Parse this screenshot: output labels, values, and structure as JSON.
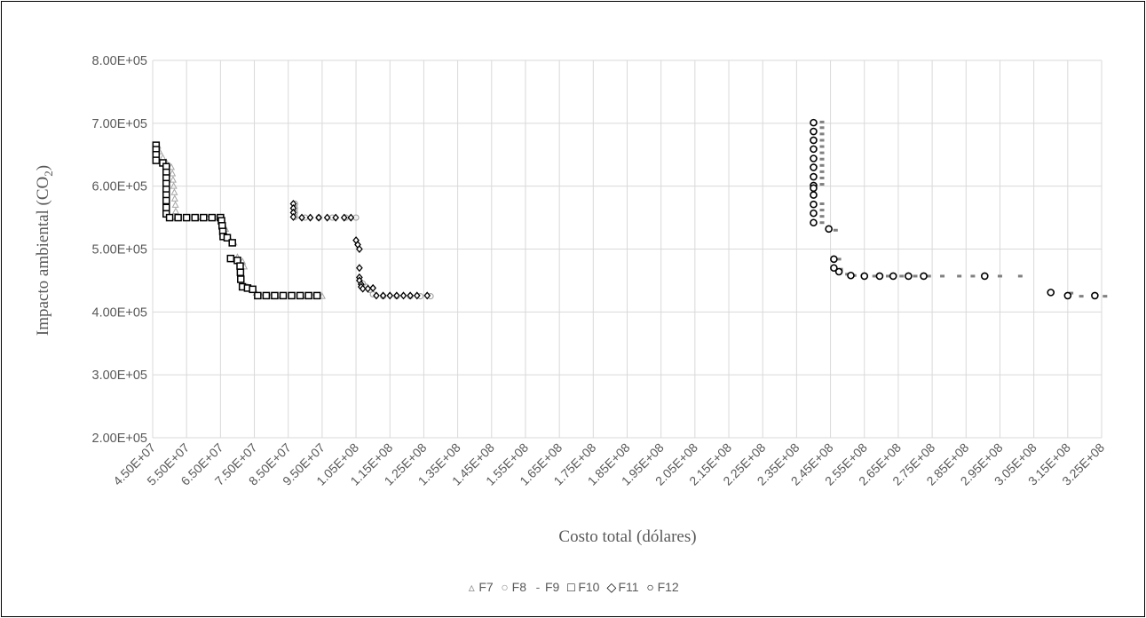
{
  "chart_data": {
    "type": "scatter",
    "title": "",
    "xlabel": "Costo total (dólares)",
    "ylabel_main": "Impacto ambiental (CO",
    "ylabel_sub": "2",
    "ylabel_tail": ")",
    "xlim": [
      45000000,
      325000000
    ],
    "ylim": [
      200000,
      800000
    ],
    "x_ticks": [
      "4.50E+07",
      "5.50E+07",
      "6.50E+07",
      "7.50E+07",
      "8.50E+07",
      "9.50E+07",
      "1.05E+08",
      "1.15E+08",
      "1.25E+08",
      "1.35E+08",
      "1.45E+08",
      "1.55E+08",
      "1.65E+08",
      "1.75E+08",
      "1.85E+08",
      "1.95E+08",
      "2.05E+08",
      "2.15E+08",
      "2.25E+08",
      "2.35E+08",
      "2.45E+08",
      "2.55E+08",
      "2.65E+08",
      "2.75E+08",
      "2.85E+08",
      "2.95E+08",
      "3.05E+08",
      "3.15E+08",
      "3.25E+08"
    ],
    "y_ticks": [
      "2.00E+05",
      "3.00E+05",
      "4.00E+05",
      "5.00E+05",
      "6.00E+05",
      "7.00E+05",
      "8.00E+05"
    ],
    "gridlines": true,
    "legend_position": "bottom",
    "series": [
      {
        "name": "F7",
        "marker": "triangle",
        "color": "#a6a6a6",
        "points": [
          [
            46500000,
            664000
          ],
          [
            47000000,
            655000
          ],
          [
            48000000,
            645000
          ],
          [
            49000000,
            638000
          ],
          [
            50500000,
            630000
          ],
          [
            50800000,
            620000
          ],
          [
            51000000,
            610000
          ],
          [
            51200000,
            600000
          ],
          [
            51400000,
            590000
          ],
          [
            51500000,
            580000
          ],
          [
            51700000,
            570000
          ],
          [
            51800000,
            560000
          ],
          [
            52000000,
            550000
          ],
          [
            55000000,
            550000
          ],
          [
            58000000,
            550000
          ],
          [
            61000000,
            550000
          ],
          [
            63000000,
            550000
          ],
          [
            64000000,
            550000
          ],
          [
            65500000,
            548000
          ],
          [
            66500000,
            532000
          ],
          [
            67500000,
            518000
          ],
          [
            69000000,
            510000
          ],
          [
            70000000,
            487000
          ],
          [
            71500000,
            480000
          ],
          [
            72000000,
            472000
          ],
          [
            73000000,
            440000
          ],
          [
            74000000,
            437000
          ],
          [
            75500000,
            430000
          ],
          [
            77000000,
            425000
          ],
          [
            80000000,
            425000
          ],
          [
            83000000,
            425000
          ],
          [
            86000000,
            425000
          ],
          [
            89000000,
            425000
          ],
          [
            92000000,
            425000
          ],
          [
            95000000,
            425000
          ]
        ]
      },
      {
        "name": "F8",
        "marker": "circle-small",
        "color": "#a6a6a6",
        "points": [
          [
            87000000,
            572000
          ],
          [
            87000000,
            565000
          ],
          [
            87000000,
            558000
          ],
          [
            87000000,
            551000
          ],
          [
            90000000,
            550000
          ],
          [
            94000000,
            550000
          ],
          [
            98000000,
            550000
          ],
          [
            102000000,
            550000
          ],
          [
            105000000,
            550000
          ],
          [
            107000000,
            445000
          ],
          [
            108000000,
            440000
          ],
          [
            109000000,
            435000
          ],
          [
            110000000,
            428000
          ],
          [
            113000000,
            425000
          ],
          [
            117000000,
            425000
          ],
          [
            121000000,
            425000
          ],
          [
            124000000,
            425000
          ],
          [
            127000000,
            425000
          ]
        ]
      },
      {
        "name": "F9",
        "marker": "dash",
        "color": "#808080",
        "points": [
          [
            242500000,
            702000
          ],
          [
            242500000,
            693000
          ],
          [
            242500000,
            683000
          ],
          [
            242500000,
            673000
          ],
          [
            242500000,
            663000
          ],
          [
            242500000,
            653000
          ],
          [
            242500000,
            643000
          ],
          [
            242500000,
            633000
          ],
          [
            242500000,
            623000
          ],
          [
            242500000,
            613000
          ],
          [
            242500000,
            603000
          ],
          [
            242500000,
            572000
          ],
          [
            242500000,
            562000
          ],
          [
            242500000,
            552000
          ],
          [
            242500000,
            542000
          ],
          [
            246500000,
            530000
          ],
          [
            247500000,
            484000
          ],
          [
            248000000,
            468000
          ],
          [
            250000000,
            460000
          ],
          [
            252000000,
            458000
          ],
          [
            255000000,
            457000
          ],
          [
            258000000,
            457000
          ],
          [
            262000000,
            457000
          ],
          [
            266000000,
            457000
          ],
          [
            270000000,
            457000
          ],
          [
            274000000,
            457000
          ],
          [
            278000000,
            457000
          ],
          [
            283000000,
            457000
          ],
          [
            287000000,
            457000
          ],
          [
            295000000,
            457000
          ],
          [
            301000000,
            457000
          ],
          [
            316000000,
            430000
          ],
          [
            319000000,
            425000
          ],
          [
            326000000,
            425000
          ]
        ]
      },
      {
        "name": "F10",
        "marker": "square",
        "color": "#000000",
        "points": [
          [
            46000000,
            665000
          ],
          [
            46000000,
            658000
          ],
          [
            46000000,
            650000
          ],
          [
            46000000,
            641000
          ],
          [
            48000000,
            637000
          ],
          [
            49000000,
            631000
          ],
          [
            49000000,
            622000
          ],
          [
            49000000,
            613000
          ],
          [
            49000000,
            604000
          ],
          [
            49000000,
            595000
          ],
          [
            49000000,
            586000
          ],
          [
            49000000,
            577000
          ],
          [
            49000000,
            566000
          ],
          [
            49000000,
            556000
          ],
          [
            50000000,
            550000
          ],
          [
            52500000,
            550000
          ],
          [
            55000000,
            550000
          ],
          [
            57500000,
            550000
          ],
          [
            60000000,
            550000
          ],
          [
            62500000,
            550000
          ],
          [
            65000000,
            550000
          ],
          [
            65300000,
            545000
          ],
          [
            65500000,
            537000
          ],
          [
            65700000,
            528000
          ],
          [
            65800000,
            520000
          ],
          [
            67000000,
            518000
          ],
          [
            68500000,
            510000
          ],
          [
            68000000,
            485000
          ],
          [
            70000000,
            482000
          ],
          [
            70800000,
            473000
          ],
          [
            70900000,
            463000
          ],
          [
            71000000,
            452000
          ],
          [
            71500000,
            440000
          ],
          [
            73000000,
            438000
          ],
          [
            74500000,
            436000
          ],
          [
            76000000,
            426000
          ],
          [
            78500000,
            426000
          ],
          [
            81000000,
            426000
          ],
          [
            83500000,
            426000
          ],
          [
            86000000,
            426000
          ],
          [
            88500000,
            426000
          ],
          [
            91000000,
            426000
          ],
          [
            93500000,
            426000
          ]
        ]
      },
      {
        "name": "F11",
        "marker": "diamond",
        "color": "#000000",
        "points": [
          [
            86500000,
            572000
          ],
          [
            86500000,
            565000
          ],
          [
            86500000,
            558000
          ],
          [
            86500000,
            551000
          ],
          [
            89000000,
            550000
          ],
          [
            91500000,
            550000
          ],
          [
            94000000,
            550000
          ],
          [
            96500000,
            550000
          ],
          [
            99000000,
            550000
          ],
          [
            101500000,
            550000
          ],
          [
            103500000,
            550000
          ],
          [
            105000000,
            514000
          ],
          [
            105500000,
            507000
          ],
          [
            106000000,
            500000
          ],
          [
            106000000,
            470000
          ],
          [
            106000000,
            455000
          ],
          [
            106000000,
            450000
          ],
          [
            106500000,
            444000
          ],
          [
            106500000,
            440000
          ],
          [
            107000000,
            437000
          ],
          [
            108500000,
            437000
          ],
          [
            110000000,
            438000
          ],
          [
            111000000,
            426000
          ],
          [
            113000000,
            426000
          ],
          [
            115000000,
            426000
          ],
          [
            117000000,
            426000
          ],
          [
            119000000,
            426000
          ],
          [
            121000000,
            426000
          ],
          [
            123000000,
            426000
          ],
          [
            126000000,
            426000
          ]
        ]
      },
      {
        "name": "F12",
        "marker": "circle",
        "color": "#000000",
        "points": [
          [
            240000000,
            701000
          ],
          [
            240000000,
            687000
          ],
          [
            240000000,
            673000
          ],
          [
            240000000,
            659000
          ],
          [
            240000000,
            644000
          ],
          [
            240000000,
            630000
          ],
          [
            240000000,
            615000
          ],
          [
            240000000,
            601000
          ],
          [
            240000000,
            597000
          ],
          [
            240000000,
            586000
          ],
          [
            240000000,
            571000
          ],
          [
            240000000,
            557000
          ],
          [
            240000000,
            542000
          ],
          [
            244500000,
            532000
          ],
          [
            246000000,
            484000
          ],
          [
            246000000,
            470000
          ],
          [
            247500000,
            464000
          ],
          [
            251000000,
            458000
          ],
          [
            255000000,
            457000
          ],
          [
            259500000,
            457000
          ],
          [
            263500000,
            457000
          ],
          [
            268000000,
            457000
          ],
          [
            272500000,
            457000
          ],
          [
            290500000,
            457000
          ],
          [
            310000000,
            431000
          ],
          [
            315000000,
            426000
          ],
          [
            323000000,
            426000
          ]
        ]
      }
    ]
  }
}
